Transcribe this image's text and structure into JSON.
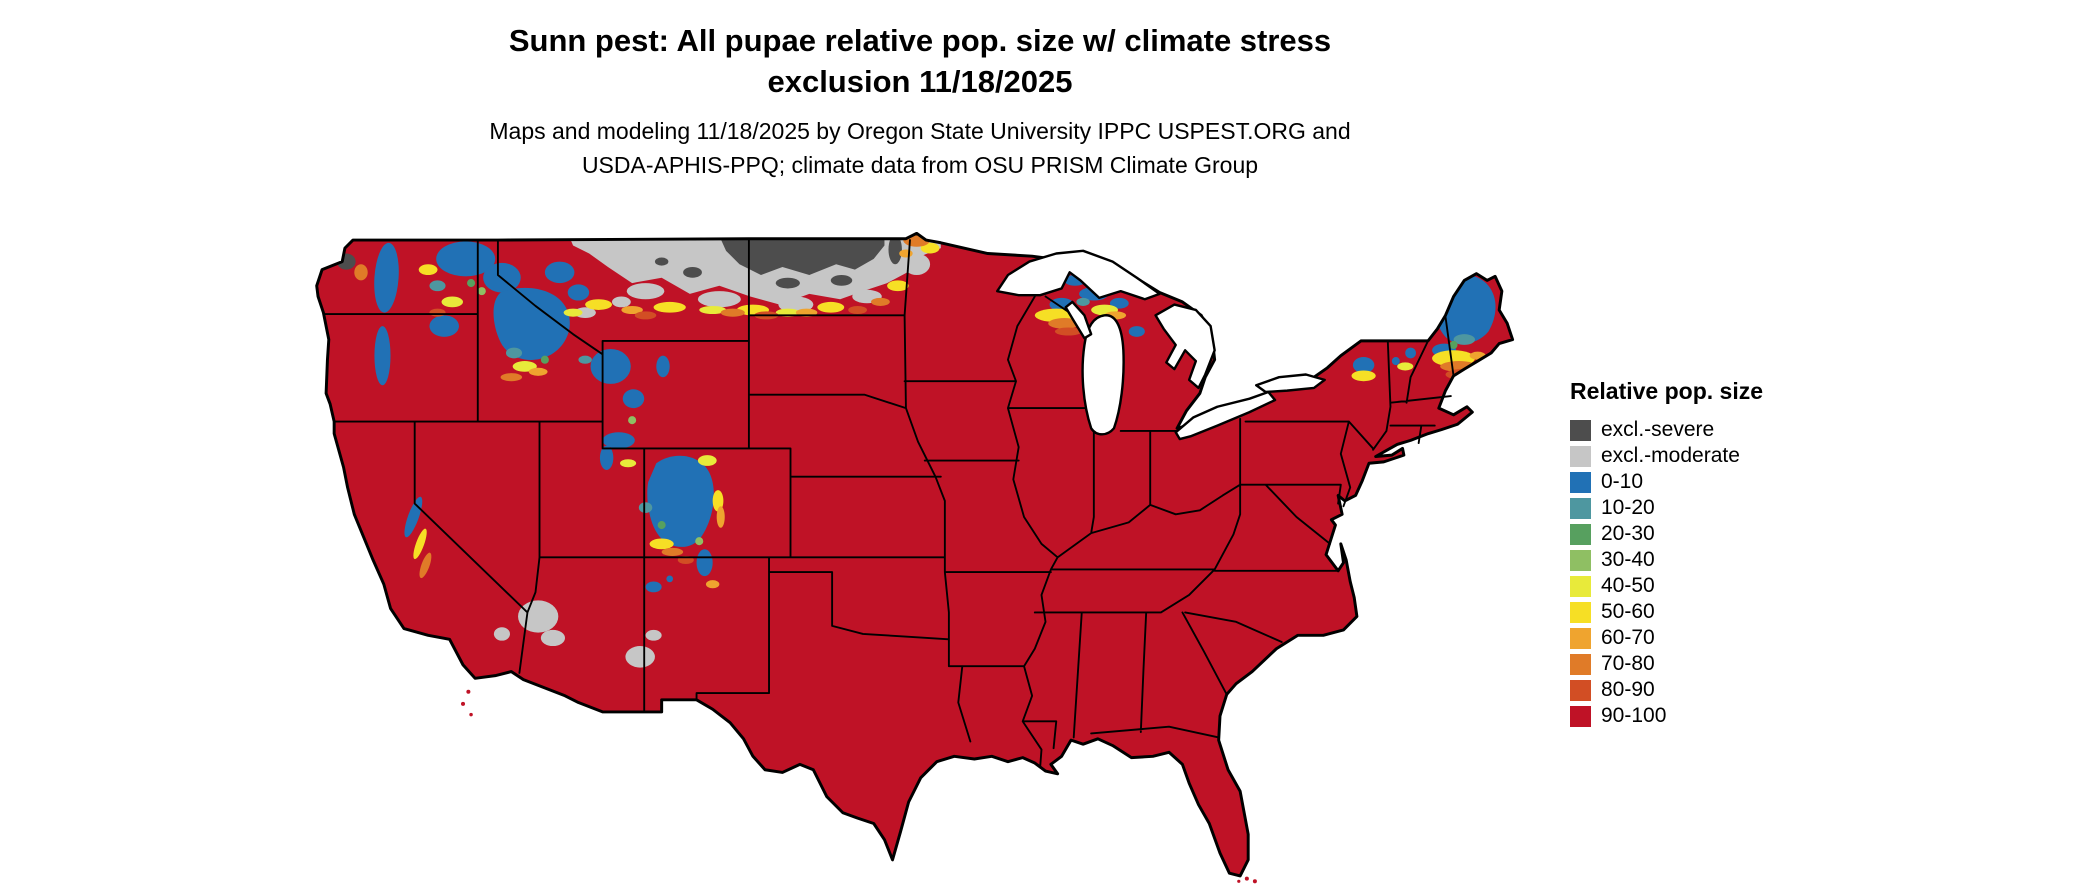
{
  "header": {
    "title_line1": "Sunn pest: All pupae relative pop. size w/ climate stress",
    "title_line2": "exclusion 11/18/2025",
    "subtitle_line1": "Maps and modeling 11/18/2025 by Oregon State University IPPC USPEST.ORG and",
    "subtitle_line2": "USDA-APHIS-PPQ; climate data from OSU PRISM Climate Group"
  },
  "legend": {
    "title": "Relative pop. size",
    "items": [
      {
        "key": "ex_severe",
        "label": "excl.-severe",
        "color": "#4d4d4d"
      },
      {
        "key": "ex_moderate",
        "label": "excl.-moderate",
        "color": "#c6c6c6"
      },
      {
        "key": "b0_10",
        "label": "0-10",
        "color": "#2171b5"
      },
      {
        "key": "b10_20",
        "label": "10-20",
        "color": "#4e97a0"
      },
      {
        "key": "b20_30",
        "label": "20-30",
        "color": "#57a05f"
      },
      {
        "key": "b30_40",
        "label": "30-40",
        "color": "#8fbf63"
      },
      {
        "key": "b40_50",
        "label": "40-50",
        "color": "#e8ea3a"
      },
      {
        "key": "b50_60",
        "label": "50-60",
        "color": "#f6df25"
      },
      {
        "key": "b60_70",
        "label": "60-70",
        "color": "#efa42f"
      },
      {
        "key": "b70_80",
        "label": "70-80",
        "color": "#e07b28"
      },
      {
        "key": "b80_90",
        "label": "80-90",
        "color": "#d24e24"
      },
      {
        "key": "b90_100",
        "label": "90-100",
        "color": "#bf1226"
      }
    ]
  },
  "map": {
    "description": "Continental United States raster map; dominant class 90-100 (red); climate-stress exclusion band (gray) across northern Montana / North Dakota / northern Minnesota; low relative population (blues/greens/yellows) in Pacific Northwest mountains, central Idaho, Yellowstone and Colorado Rockies, northern Great Lakes shores, Adirondacks and northern Maine; small moderate-exclusion patches in Nevada and New Mexico",
    "outline_color": "#000000",
    "background_color": "#ffffff"
  }
}
